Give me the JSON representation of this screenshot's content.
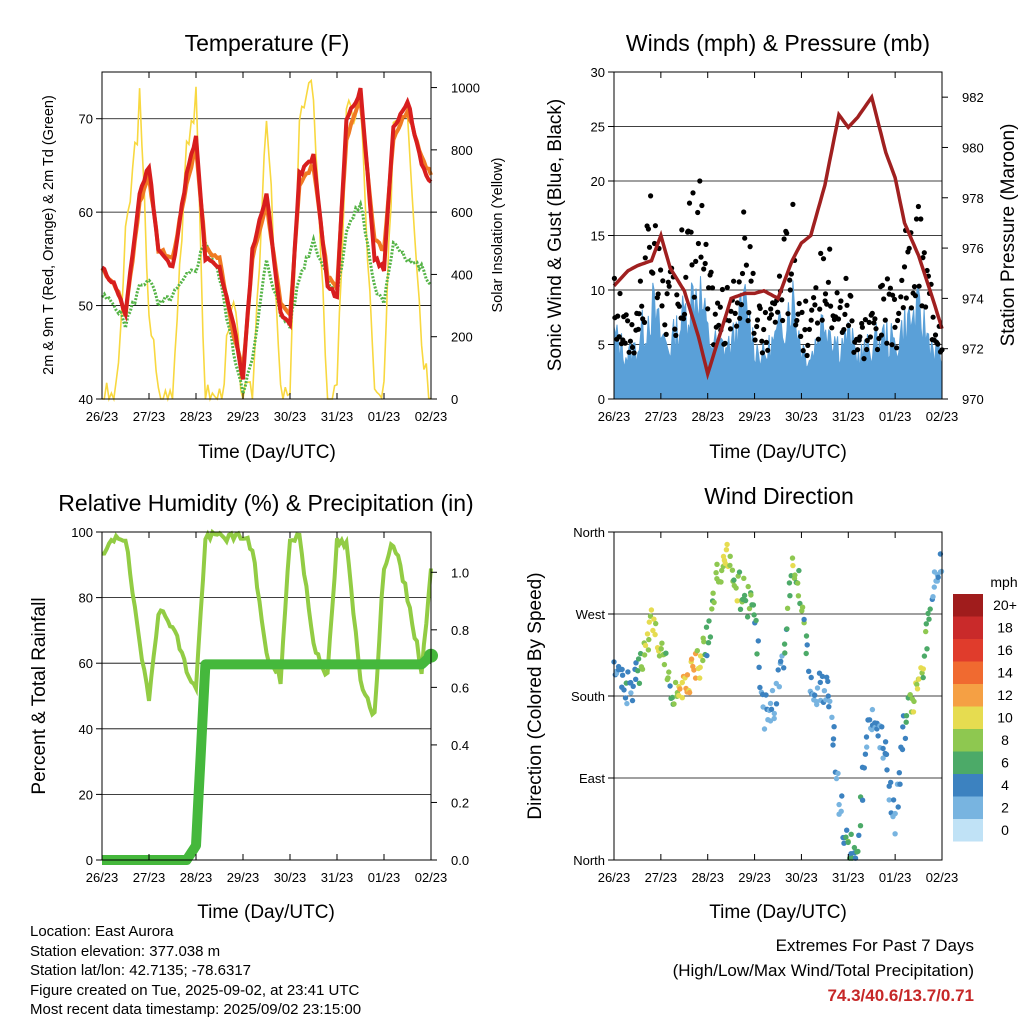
{
  "colors": {
    "red": "#d81e1e",
    "orange": "#f07a22",
    "green": "#55b447",
    "yellow": "#f8d840",
    "blue": "#5aa0d8",
    "black": "#000000",
    "maroon": "#a02020",
    "rh": "#92cc44",
    "precip": "#45b83c",
    "extreme_text": "#c62828"
  },
  "x_ticks": [
    "26/23",
    "27/23",
    "28/23",
    "29/23",
    "30/23",
    "31/23",
    "01/23",
    "02/23"
  ],
  "x_label": "Time (Day/UTC)",
  "charts": {
    "temperature": {
      "title": "Temperature (F)",
      "ylabel_left": "2m & 9m T (Red, Orange) & 2m Td (Green)",
      "ylabel_right": "Solar Insolation (Yellow)",
      "yticks_left": [
        "40",
        "50",
        "60",
        "70"
      ],
      "yticks_right": [
        "0",
        "200",
        "400",
        "600",
        "800",
        "1000"
      ]
    },
    "winds": {
      "title": "Winds (mph) & Pressure (mb)",
      "ylabel_left": "Sonic Wind & Gust (Blue, Black)",
      "ylabel_right": "Station Pressure (Maroon)",
      "yticks_left": [
        "0",
        "5",
        "10",
        "15",
        "20",
        "25",
        "30"
      ],
      "yticks_right": [
        "970",
        "972",
        "974",
        "976",
        "978",
        "980",
        "982"
      ]
    },
    "humidity": {
      "title": "Relative Humidity (%) & Precipitation (in)",
      "ylabel_left": "Percent & Total Rainfall",
      "yticks_left": [
        "0",
        "20",
        "40",
        "60",
        "80",
        "100"
      ],
      "yticks_right": [
        "0.0",
        "0.2",
        "0.4",
        "0.6",
        "0.8",
        "1.0"
      ]
    },
    "direction": {
      "title": "Wind Direction",
      "ylabel_left": "Direction (Colored By Speed)",
      "yticks_left": [
        "North",
        "East",
        "South",
        "West",
        "North"
      ],
      "colorbar_title": "mph",
      "colorbar_labels": [
        "20+",
        "18",
        "16",
        "14",
        "12",
        "10",
        "8",
        "6",
        "4",
        "2",
        "0"
      ],
      "colorbar_colors": [
        "#a01c1c",
        "#c92a2a",
        "#e03c2c",
        "#f06a30",
        "#f5a044",
        "#e6dc50",
        "#8ec850",
        "#4caa68",
        "#3c82c0",
        "#78b4e0",
        "#c0e2f6"
      ]
    }
  },
  "chart_data": [
    {
      "type": "line",
      "title": "Temperature (F)",
      "xlabel": "Time (Day/UTC)",
      "ylabel": "2m & 9m T (Red, Orange) & 2m Td (Green)",
      "y2label": "Solar Insolation (Yellow)",
      "ylim": [
        40,
        75
      ],
      "y2lim": [
        0,
        1050
      ],
      "x": [
        0,
        0.3,
        0.5,
        0.8,
        1.0,
        1.2,
        1.5,
        1.8,
        2.0,
        2.2,
        2.5,
        2.8,
        3.0,
        3.2,
        3.5,
        3.8,
        4.0,
        4.2,
        4.5,
        4.8,
        5.0,
        5.2,
        5.5,
        5.8,
        6.0,
        6.2,
        6.5,
        6.8,
        7.0
      ],
      "series": [
        {
          "name": "2m T",
          "values": [
            54,
            52,
            49,
            62,
            65,
            56,
            54,
            64,
            68,
            55,
            54,
            48,
            42,
            56,
            62,
            49,
            48,
            64,
            66,
            52,
            51,
            70,
            73,
            55,
            54,
            69,
            72,
            65,
            63
          ]
        },
        {
          "name": "9m T",
          "values": [
            54,
            52,
            49,
            61,
            64,
            56,
            55,
            63,
            67,
            56,
            55,
            47,
            43,
            55,
            61,
            50,
            49,
            63,
            65,
            53,
            52,
            68,
            72,
            57,
            56,
            68,
            71,
            66,
            64
          ]
        },
        {
          "name": "2m Td",
          "values": [
            51,
            50,
            48,
            52,
            53,
            50,
            51,
            53,
            54,
            57,
            53,
            45,
            41,
            44,
            55,
            49,
            48,
            53,
            57,
            53,
            51,
            58,
            61,
            52,
            50,
            57,
            55,
            54,
            52
          ]
        },
        {
          "name": "Solar Insolation",
          "values": [
            0,
            0,
            500,
            950,
            300,
            0,
            0,
            850,
            950,
            0,
            0,
            300,
            0,
            0,
            950,
            0,
            0,
            900,
            1000,
            0,
            0,
            900,
            950,
            0,
            0,
            900,
            950,
            200,
            0
          ]
        }
      ]
    },
    {
      "type": "line",
      "title": "Winds (mph) & Pressure (mb)",
      "xlabel": "Time (Day/UTC)",
      "ylabel": "Sonic Wind & Gust (Blue, Black)",
      "y2label": "Station Pressure (Maroon)",
      "ylim": [
        0,
        30
      ],
      "y2lim": [
        970,
        983
      ],
      "x": [
        0,
        0.3,
        0.5,
        0.8,
        1.0,
        1.2,
        1.5,
        1.8,
        2.0,
        2.2,
        2.5,
        2.8,
        3.0,
        3.2,
        3.5,
        3.8,
        4.0,
        4.2,
        4.5,
        4.8,
        5.0,
        5.2,
        5.5,
        5.8,
        6.0,
        6.2,
        6.5,
        6.8,
        7.0
      ],
      "series": [
        {
          "name": "Sonic Wind",
          "values": [
            6,
            4,
            5,
            9,
            6,
            5,
            8,
            11,
            6,
            5,
            5,
            9,
            5,
            4,
            6,
            10,
            5,
            4,
            8,
            5,
            6,
            4,
            5,
            6,
            5,
            7,
            8,
            5,
            4
          ]
        },
        {
          "name": "Gust",
          "values": [
            9,
            6,
            8,
            15,
            10,
            9,
            13,
            18,
            10,
            8,
            8,
            14,
            8,
            6,
            10,
            15,
            8,
            6,
            13,
            8,
            10,
            6,
            7,
            9,
            7,
            12,
            14,
            9,
            7
          ]
        },
        {
          "name": "Station Pressure",
          "values": [
            974.5,
            975.1,
            975.3,
            975.5,
            976.5,
            975.2,
            974.3,
            972.5,
            971.0,
            972.2,
            974.0,
            974.2,
            974.2,
            974.3,
            974.0,
            975.5,
            976.2,
            976.5,
            978.5,
            981.3,
            980.8,
            981.2,
            982.0,
            979.8,
            978.8,
            977.0,
            975.7,
            974.0,
            972.8
          ]
        }
      ]
    },
    {
      "type": "line",
      "title": "Relative Humidity (%) & Precipitation (in)",
      "xlabel": "Time (Day/UTC)",
      "ylabel": "Percent & Total Rainfall",
      "ylim": [
        0,
        100
      ],
      "y2lim": [
        0,
        1.14
      ],
      "x": [
        0,
        0.3,
        0.5,
        0.8,
        1.0,
        1.2,
        1.5,
        1.8,
        2.0,
        2.2,
        2.5,
        2.8,
        3.0,
        3.2,
        3.5,
        3.8,
        4.0,
        4.2,
        4.5,
        4.8,
        5.0,
        5.2,
        5.5,
        5.8,
        6.0,
        6.2,
        6.5,
        6.8,
        7.0
      ],
      "series": [
        {
          "name": "Relative Humidity",
          "values": [
            92,
            99,
            98,
            65,
            50,
            76,
            72,
            58,
            52,
            98,
            99,
            98,
            99,
            95,
            62,
            55,
            98,
            99,
            66,
            56,
            97,
            96,
            55,
            44,
            90,
            97,
            80,
            58,
            88
          ]
        },
        {
          "name": "Total Rainfall",
          "values": [
            0,
            0,
            0,
            0,
            0,
            0,
            0,
            0,
            0.05,
            0.68,
            0.68,
            0.68,
            0.68,
            0.68,
            0.68,
            0.68,
            0.68,
            0.68,
            0.68,
            0.68,
            0.68,
            0.68,
            0.68,
            0.68,
            0.68,
            0.68,
            0.68,
            0.68,
            0.71
          ]
        }
      ]
    },
    {
      "type": "scatter",
      "title": "Wind Direction",
      "xlabel": "Time (Day/UTC)",
      "ylabel": "Direction (Colored By Speed)",
      "ylim": [
        0,
        360
      ],
      "x": [
        0.05,
        0.2,
        0.4,
        0.6,
        0.8,
        1.0,
        1.2,
        1.4,
        1.6,
        1.8,
        2.0,
        2.2,
        2.4,
        2.6,
        2.8,
        3.0,
        3.2,
        3.4,
        3.6,
        3.8,
        4.0,
        4.2,
        4.4,
        4.6,
        4.8,
        5.0,
        5.2,
        5.4,
        5.6,
        5.8,
        6.0,
        6.2,
        6.4,
        6.6,
        6.8,
        7.0
      ],
      "series": [
        {
          "name": "Direction",
          "values": [
            200,
            195,
            185,
            220,
            260,
            240,
            195,
            180,
            200,
            215,
            240,
            320,
            330,
            300,
            290,
            265,
            160,
            170,
            220,
            320,
            290,
            185,
            190,
            180,
            70,
            10,
            20,
            140,
            150,
            110,
            40,
            150,
            180,
            210,
            300,
            330
          ]
        },
        {
          "name": "Speed",
          "values": [
            3,
            4,
            3,
            8,
            10,
            9,
            6,
            10,
            12,
            10,
            5,
            8,
            9,
            8,
            7,
            6,
            3,
            3,
            4,
            8,
            7,
            3,
            3,
            4,
            2,
            6,
            5,
            3,
            3,
            4,
            3,
            4,
            9,
            8,
            3,
            2
          ]
        }
      ]
    }
  ],
  "info": {
    "location": "Location: East Aurora",
    "elevation": "Station elevation: 377.038 m",
    "latlon": "Station lat/lon: 42.7135; -78.6317",
    "created": "Figure created on Tue, 2025-09-02, at 23:41 UTC",
    "recent": "Most recent data timestamp: 2025/09/02 23:15:00"
  },
  "extremes": {
    "title": "Extremes For Past 7 Days",
    "subtitle": "(High/Low/Max Wind/Total Precipitation)",
    "values": "74.3/40.6/13.7/0.71"
  }
}
